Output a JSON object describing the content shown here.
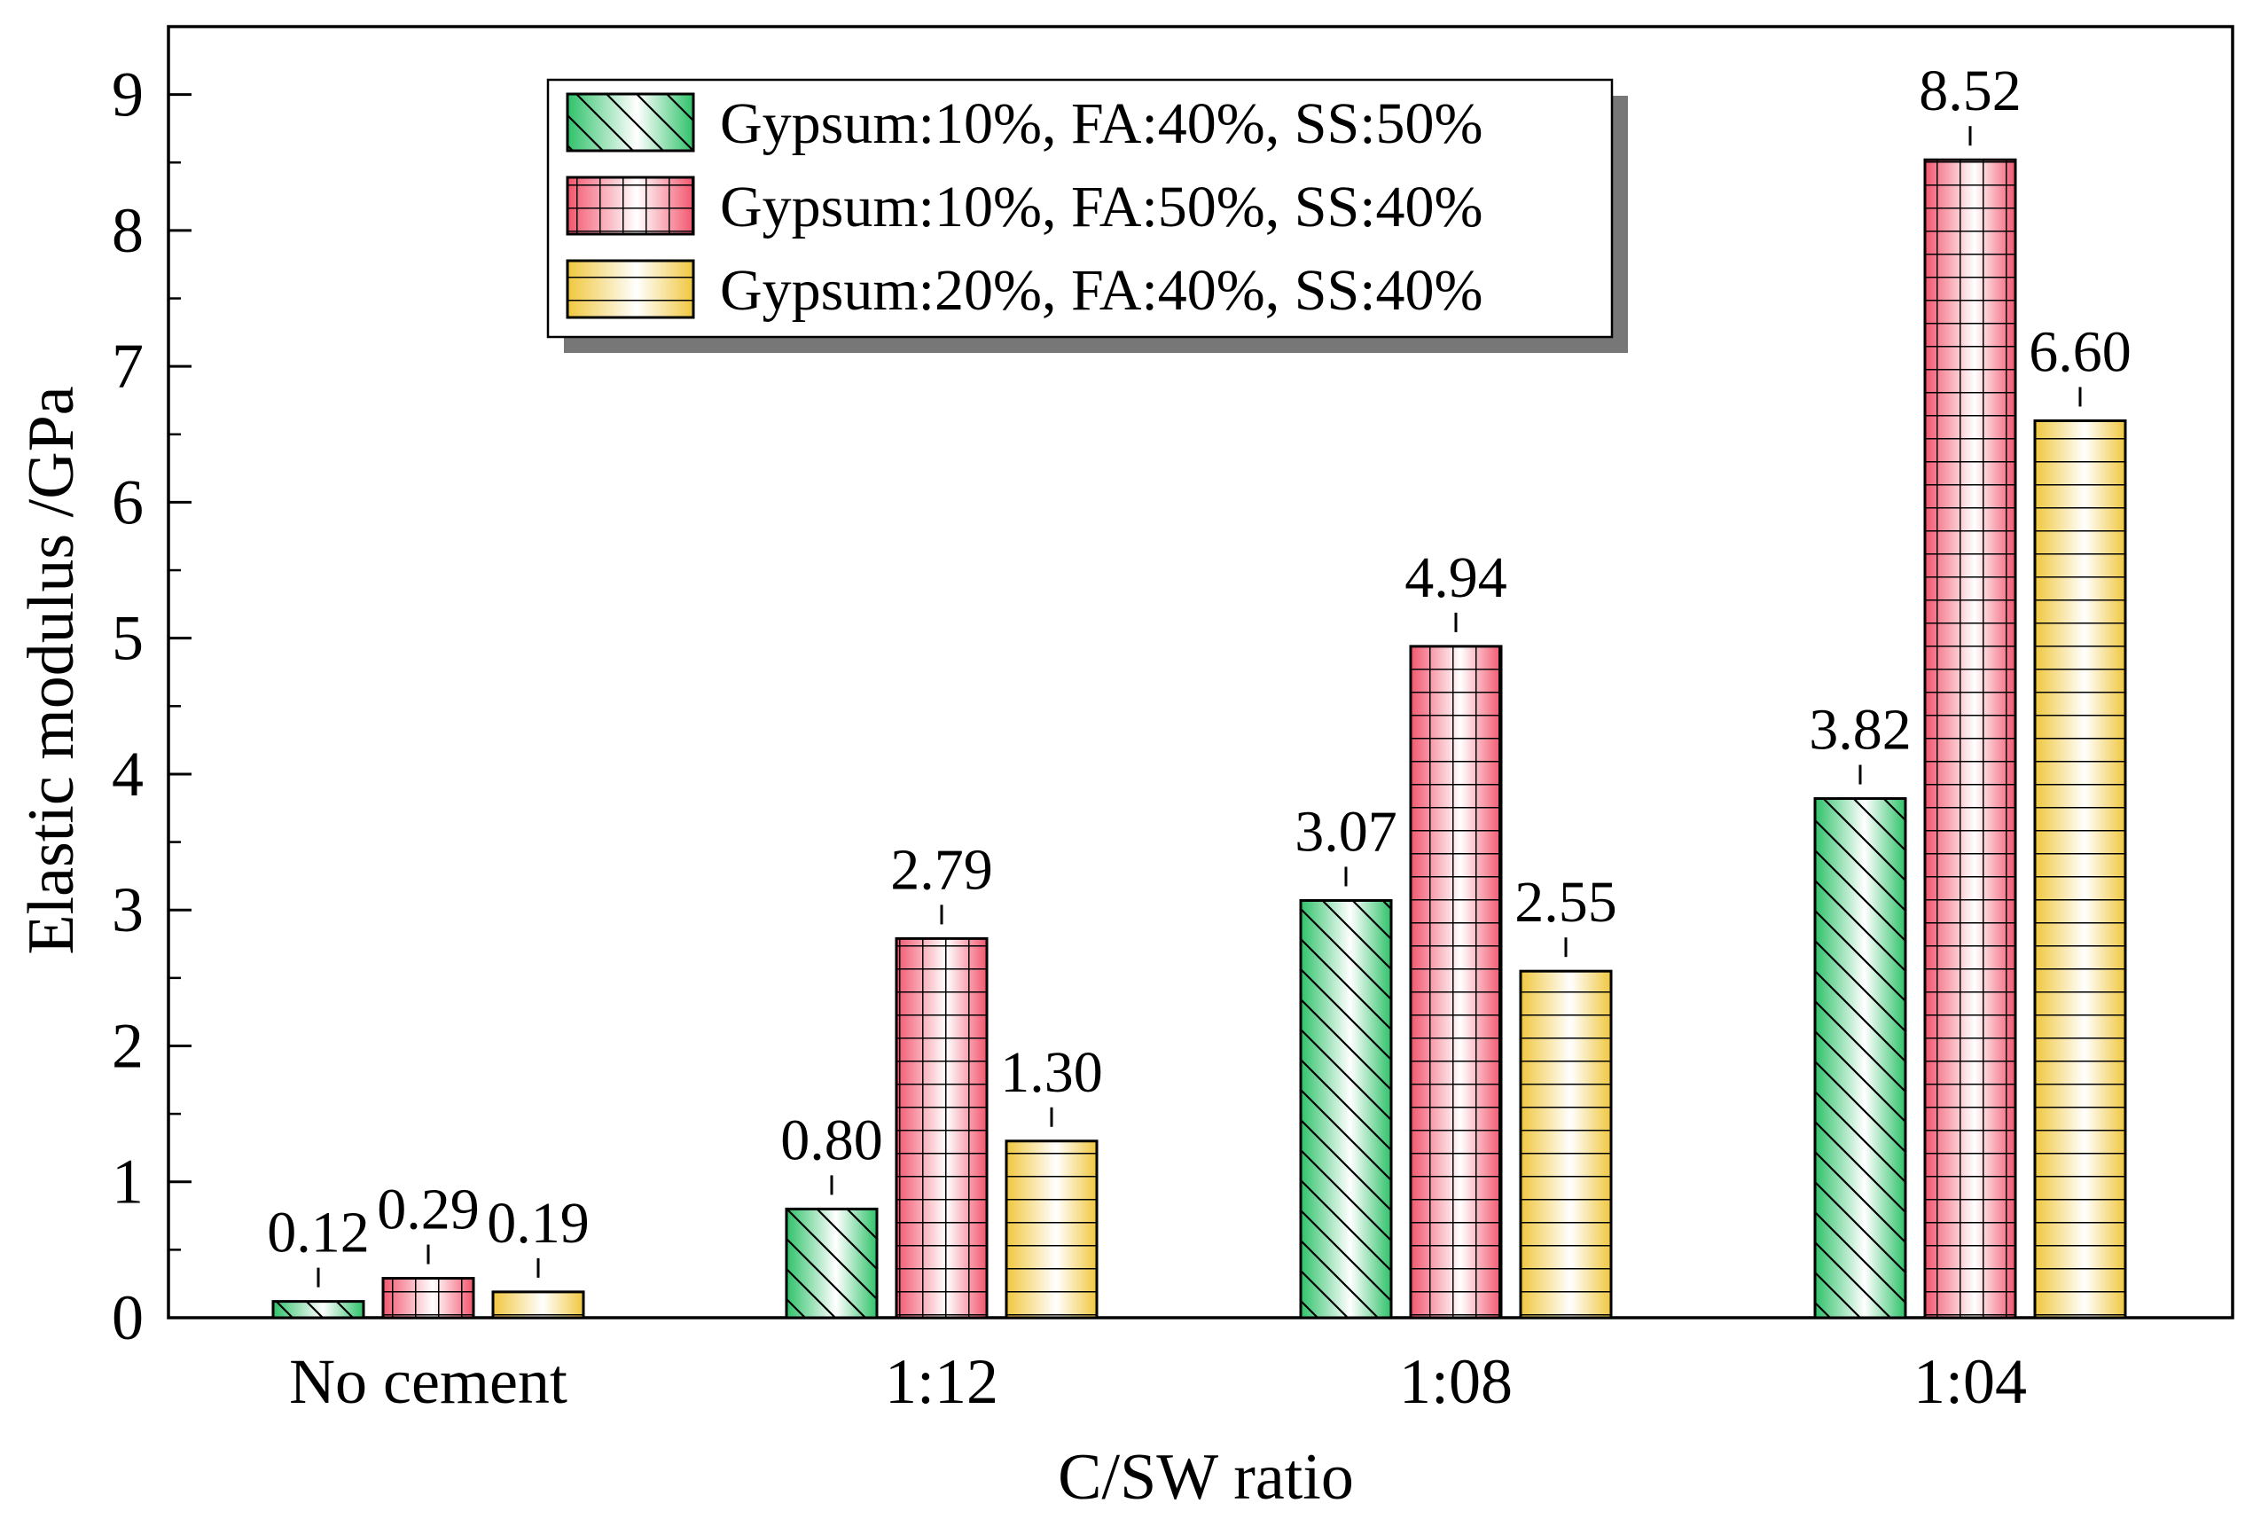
{
  "chart_data": {
    "type": "bar",
    "title": "",
    "xlabel": "C/SW ratio",
    "ylabel": "Elastic modulus /GPa",
    "ylim": [
      0,
      9.5
    ],
    "yticks": [
      0,
      1,
      2,
      3,
      4,
      5,
      6,
      7,
      8,
      9
    ],
    "categories": [
      "No cement",
      "1:12",
      "1:08",
      "1:04"
    ],
    "series": [
      {
        "name": "Gypsum:10%, FA:40%, SS:50%",
        "values": [
          0.12,
          0.8,
          3.07,
          3.82
        ],
        "labels": [
          "0.12",
          "0.80",
          "3.07",
          "3.82"
        ],
        "color": "#2fc26a",
        "pattern": "diagonal"
      },
      {
        "name": "Gypsum:10%, FA:50%, SS:40%",
        "values": [
          0.29,
          2.79,
          4.94,
          8.52
        ],
        "labels": [
          "0.29",
          "2.79",
          "4.94",
          "8.52"
        ],
        "color": "#f2566e",
        "pattern": "grid"
      },
      {
        "name": "Gypsum:20%, FA:40%, SS:40%",
        "values": [
          0.19,
          1.3,
          2.55,
          6.6
        ],
        "labels": [
          "0.19",
          "1.30",
          "2.55",
          "6.60"
        ],
        "color": "#f0c73e",
        "pattern": "horizontal"
      }
    ],
    "legend_position": "top-left",
    "grid": false
  }
}
